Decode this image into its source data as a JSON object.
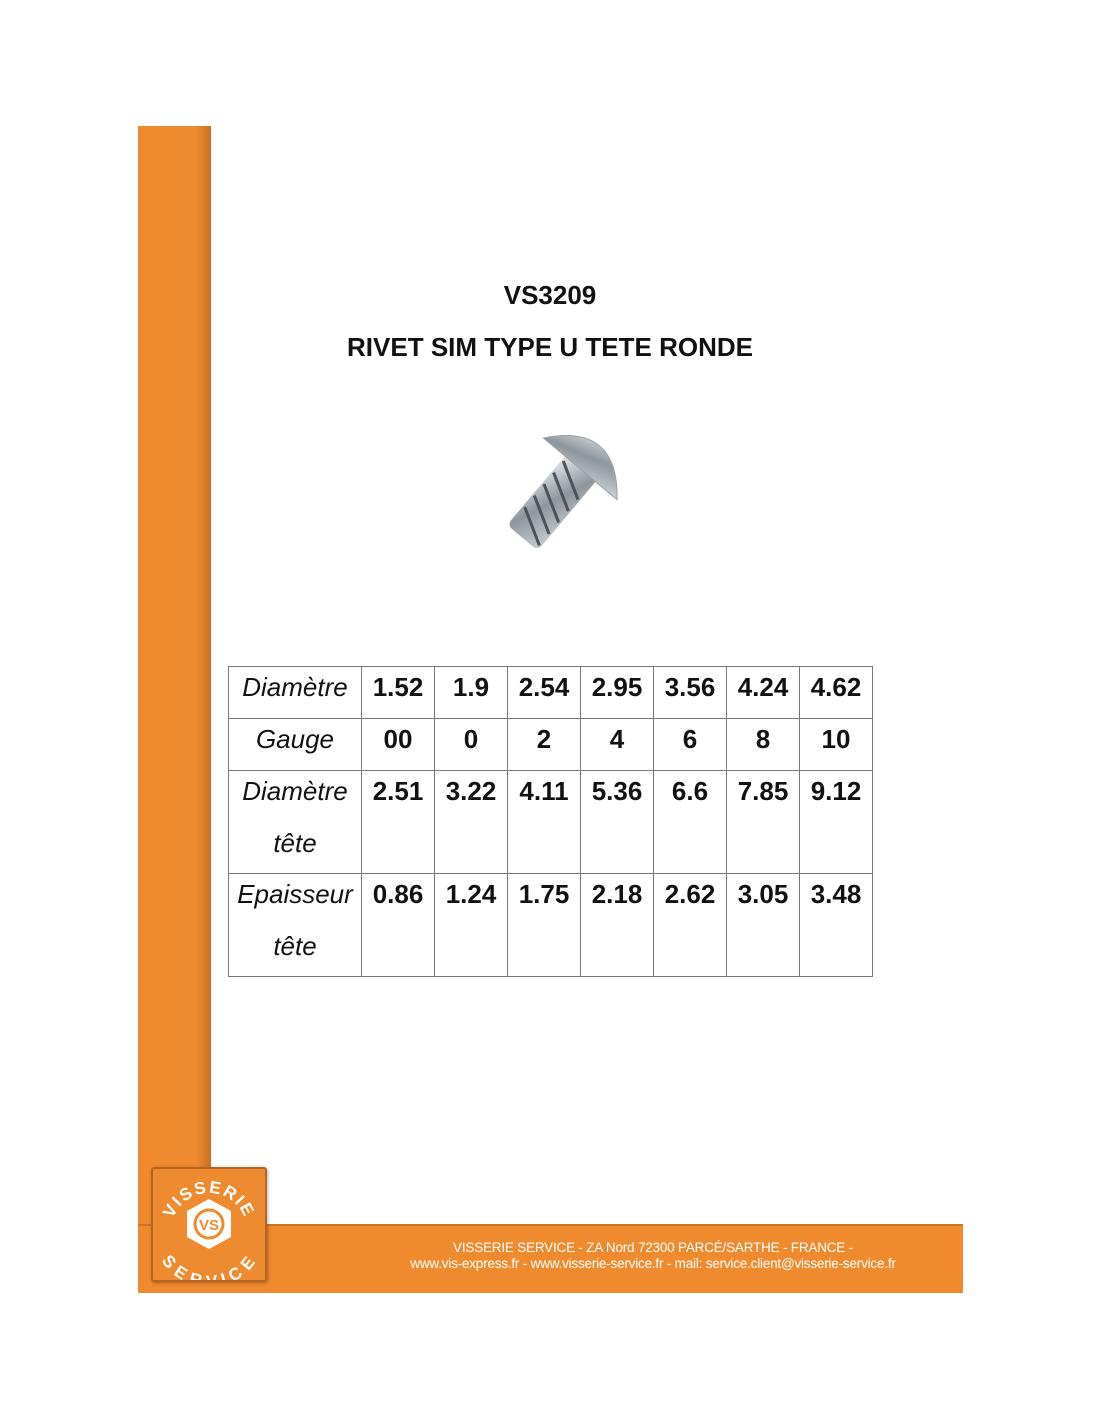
{
  "product": {
    "code": "VS3209",
    "name": "RIVET SIM TYPE U TETE RONDE"
  },
  "table": {
    "rows": [
      {
        "label": [
          "Diamètre"
        ],
        "values": [
          "1.52",
          "1.9",
          "2.54",
          "2.95",
          "3.56",
          "4.24",
          "4.62"
        ]
      },
      {
        "label": [
          "Gauge"
        ],
        "values": [
          "00",
          "0",
          "2",
          "4",
          "6",
          "8",
          "10"
        ]
      },
      {
        "label": [
          "Diamètre",
          "tête"
        ],
        "values": [
          "2.51",
          "3.22",
          "4.11",
          "5.36",
          "6.6",
          "7.85",
          "9.12"
        ]
      },
      {
        "label": [
          "Epaisseur",
          "tête"
        ],
        "values": [
          "0.86",
          "1.24",
          "1.75",
          "2.18",
          "2.62",
          "3.05",
          "3.48"
        ]
      }
    ]
  },
  "footer": {
    "line1": "VISSERIE SERVICE - ZA Nord 72300 PARCÉ/SARTHE - FRANCE -",
    "line2": "www.vis-express.fr - www.visserie-service.fr - mail: service.client@visserie-service.fr"
  },
  "logo": {
    "text_top": "VISSERIE",
    "text_bottom": "SERVICE",
    "monogram": "VS"
  },
  "colors": {
    "brand_orange": "#ef8a2f"
  }
}
